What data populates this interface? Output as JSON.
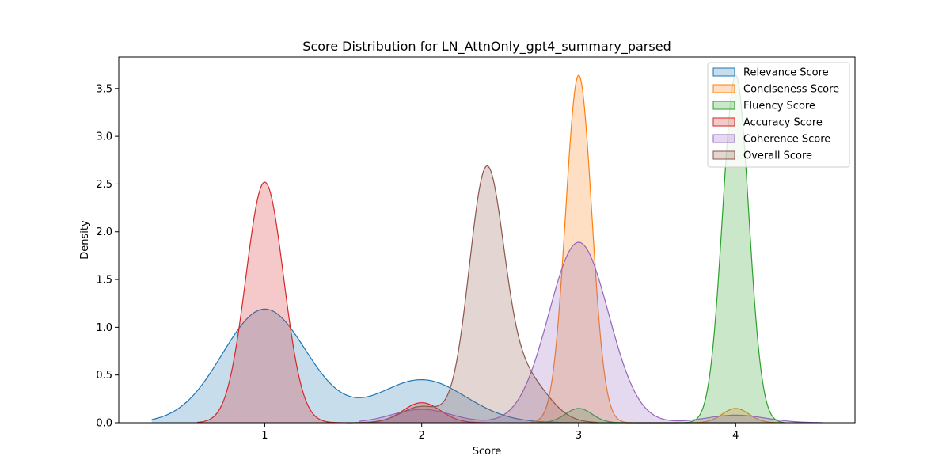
{
  "chart_data": {
    "type": "area",
    "title": "Score Distribution for LN_AttnOnly_gpt4_summary_parsed",
    "xlabel": "Score",
    "ylabel": "Density",
    "xlim": [
      0.07,
      4.76
    ],
    "ylim": [
      0,
      3.83
    ],
    "xticks": [
      "1",
      "2",
      "3",
      "4"
    ],
    "yticks": [
      "0.0",
      "0.5",
      "1.0",
      "1.5",
      "2.0",
      "2.5",
      "3.0",
      "3.5"
    ],
    "grid": false,
    "legend_position": "top-right",
    "series": [
      {
        "name": "Relevance Score",
        "color": "#1f77b4",
        "domain": [
          0.28,
          4.0
        ],
        "components": [
          {
            "mu": 1.0,
            "sigma": 0.27,
            "amp": 1.19
          },
          {
            "mu": 2.0,
            "sigma": 0.28,
            "amp": 0.45
          }
        ]
      },
      {
        "name": "Conciseness Score",
        "color": "#ff7f0e",
        "domain": [
          2.69,
          4.3
        ],
        "components": [
          {
            "mu": 3.0,
            "sigma": 0.083,
            "amp": 3.64
          },
          {
            "mu": 4.0,
            "sigma": 0.085,
            "amp": 0.15
          }
        ]
      },
      {
        "name": "Fluency Score",
        "color": "#2ca02c",
        "domain": [
          2.7,
          4.31
        ],
        "components": [
          {
            "mu": 3.0,
            "sigma": 0.085,
            "amp": 0.15
          },
          {
            "mu": 4.0,
            "sigma": 0.083,
            "amp": 3.64
          }
        ]
      },
      {
        "name": "Accuracy Score",
        "color": "#d62728",
        "domain": [
          0.57,
          2.43
        ],
        "components": [
          {
            "mu": 1.0,
            "sigma": 0.12,
            "amp": 2.52
          },
          {
            "mu": 2.0,
            "sigma": 0.12,
            "amp": 0.21
          }
        ]
      },
      {
        "name": "Coherence Score",
        "color": "#9467bd",
        "domain": [
          1.6,
          4.55
        ],
        "components": [
          {
            "mu": 3.0,
            "sigma": 0.19,
            "amp": 1.89
          },
          {
            "mu": 2.0,
            "sigma": 0.19,
            "amp": 0.14
          },
          {
            "mu": 4.0,
            "sigma": 0.19,
            "amp": 0.08
          }
        ]
      },
      {
        "name": "Overall Score",
        "color": "#8c564b",
        "domain": [
          1.57,
          3.12
        ],
        "components": [
          {
            "mu": 2.41,
            "sigma": 0.11,
            "amp": 2.55
          },
          {
            "mu": 2.65,
            "sigma": 0.15,
            "amp": 0.48
          },
          {
            "mu": 2.0,
            "sigma": 0.13,
            "amp": 0.17
          }
        ]
      }
    ]
  }
}
